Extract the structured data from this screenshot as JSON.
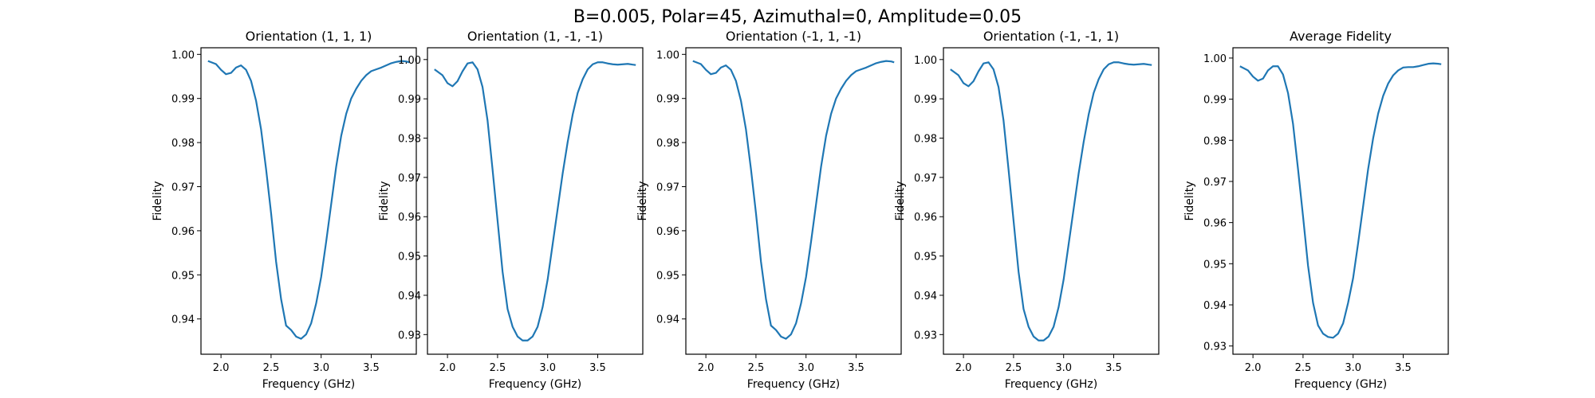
{
  "figure": {
    "suptitle": "B=0.005, Polar=45, Azimuthal=0, Amplitude=0.05",
    "line_color": "#1f77b4"
  },
  "chart_data": [
    {
      "type": "line",
      "title": "Orientation (1, 1, 1)",
      "xlabel": "Frequency (GHz)",
      "ylabel": "Fidelity",
      "xlim": [
        1.8,
        3.95
      ],
      "ylim": [
        0.932,
        1.0015
      ],
      "xticks": [
        2.0,
        2.5,
        3.0,
        3.5
      ],
      "xtick_labels": [
        "2.0",
        "2.5",
        "3.0",
        "3.5"
      ],
      "yticks": [
        0.94,
        0.95,
        0.96,
        0.97,
        0.98,
        0.99,
        1.0
      ],
      "ytick_labels": [
        "0.94",
        "0.95",
        "0.96",
        "0.97",
        "0.98",
        "0.99",
        "1.00"
      ],
      "series": [
        {
          "x": [
            1.87,
            1.95,
            2.0,
            2.05,
            2.1,
            2.15,
            2.2,
            2.25,
            2.3,
            2.35,
            2.4,
            2.45,
            2.5,
            2.55,
            2.6,
            2.65,
            2.7,
            2.75,
            2.8,
            2.85,
            2.9,
            2.95,
            3.0,
            3.05,
            3.1,
            3.15,
            3.2,
            3.25,
            3.3,
            3.35,
            3.4,
            3.45,
            3.5,
            3.55,
            3.6,
            3.65,
            3.7,
            3.75,
            3.8,
            3.85,
            3.88
          ],
          "y": [
            0.9985,
            0.9978,
            0.9965,
            0.9955,
            0.9958,
            0.997,
            0.9975,
            0.9965,
            0.994,
            0.9895,
            0.983,
            0.974,
            0.964,
            0.953,
            0.9445,
            0.9385,
            0.9375,
            0.936,
            0.9355,
            0.9365,
            0.939,
            0.9435,
            0.9495,
            0.9575,
            0.966,
            0.9745,
            0.9815,
            0.9865,
            0.99,
            0.9922,
            0.994,
            0.9953,
            0.9962,
            0.9966,
            0.997,
            0.9975,
            0.998,
            0.9983,
            0.9985,
            0.9984,
            0.9982
          ]
        }
      ]
    },
    {
      "type": "line",
      "title": "Orientation (1, -1, -1)",
      "xlabel": "Frequency (GHz)",
      "ylabel": "Fidelity",
      "xlim": [
        1.8,
        3.95
      ],
      "ylim": [
        0.925,
        1.003
      ],
      "xticks": [
        2.0,
        2.5,
        3.0,
        3.5
      ],
      "xtick_labels": [
        "2.0",
        "2.5",
        "3.0",
        "3.5"
      ],
      "yticks": [
        0.93,
        0.94,
        0.95,
        0.96,
        0.97,
        0.98,
        0.99,
        1.0
      ],
      "ytick_labels": [
        "0.93",
        "0.94",
        "0.95",
        "0.96",
        "0.97",
        "0.98",
        "0.99",
        "1.00"
      ],
      "series": [
        {
          "x": [
            1.87,
            1.95,
            2.0,
            2.05,
            2.1,
            2.15,
            2.2,
            2.25,
            2.3,
            2.35,
            2.4,
            2.45,
            2.5,
            2.55,
            2.6,
            2.65,
            2.7,
            2.75,
            2.8,
            2.85,
            2.9,
            2.95,
            3.0,
            3.05,
            3.1,
            3.15,
            3.2,
            3.25,
            3.3,
            3.35,
            3.4,
            3.45,
            3.5,
            3.55,
            3.6,
            3.65,
            3.7,
            3.75,
            3.8,
            3.85,
            3.88
          ],
          "y": [
            0.9975,
            0.996,
            0.994,
            0.9932,
            0.9945,
            0.997,
            0.999,
            0.9993,
            0.9975,
            0.993,
            0.9845,
            0.972,
            0.959,
            0.946,
            0.9365,
            0.932,
            0.9295,
            0.9285,
            0.9285,
            0.9295,
            0.932,
            0.937,
            0.944,
            0.953,
            0.962,
            0.971,
            0.979,
            0.986,
            0.9915,
            0.995,
            0.9975,
            0.9988,
            0.9993,
            0.9993,
            0.999,
            0.9988,
            0.9987,
            0.9988,
            0.9989,
            0.9987,
            0.9986
          ]
        }
      ]
    },
    {
      "type": "line",
      "title": "Orientation (-1, 1, -1)",
      "xlabel": "Frequency (GHz)",
      "ylabel": "Fidelity",
      "xlim": [
        1.8,
        3.95
      ],
      "ylim": [
        0.932,
        1.0015
      ],
      "xticks": [
        2.0,
        2.5,
        3.0,
        3.5
      ],
      "xtick_labels": [
        "2.0",
        "2.5",
        "3.0",
        "3.5"
      ],
      "yticks": [
        0.94,
        0.95,
        0.96,
        0.97,
        0.98,
        0.99,
        1.0
      ],
      "ytick_labels": [
        "0.94",
        "0.95",
        "0.96",
        "0.97",
        "0.98",
        "0.99",
        "1.00"
      ],
      "series": [
        {
          "x": [
            1.87,
            1.95,
            2.0,
            2.05,
            2.1,
            2.15,
            2.2,
            2.25,
            2.3,
            2.35,
            2.4,
            2.45,
            2.5,
            2.55,
            2.6,
            2.65,
            2.7,
            2.75,
            2.8,
            2.85,
            2.9,
            2.95,
            3.0,
            3.05,
            3.1,
            3.15,
            3.2,
            3.25,
            3.3,
            3.35,
            3.4,
            3.45,
            3.5,
            3.55,
            3.6,
            3.65,
            3.7,
            3.75,
            3.8,
            3.85,
            3.88
          ],
          "y": [
            0.9985,
            0.9978,
            0.9965,
            0.9955,
            0.9958,
            0.997,
            0.9975,
            0.9965,
            0.994,
            0.9895,
            0.983,
            0.974,
            0.964,
            0.953,
            0.9445,
            0.9385,
            0.9375,
            0.936,
            0.9355,
            0.9365,
            0.939,
            0.9435,
            0.9495,
            0.9575,
            0.966,
            0.9745,
            0.9815,
            0.9865,
            0.99,
            0.9922,
            0.994,
            0.9953,
            0.9962,
            0.9966,
            0.997,
            0.9975,
            0.998,
            0.9983,
            0.9985,
            0.9984,
            0.9982
          ]
        }
      ]
    },
    {
      "type": "line",
      "title": "Orientation (-1, -1, 1)",
      "xlabel": "Frequency (GHz)",
      "ylabel": "Fidelity",
      "xlim": [
        1.8,
        3.95
      ],
      "ylim": [
        0.925,
        1.003
      ],
      "xticks": [
        2.0,
        2.5,
        3.0,
        3.5
      ],
      "xtick_labels": [
        "2.0",
        "2.5",
        "3.0",
        "3.5"
      ],
      "yticks": [
        0.93,
        0.94,
        0.95,
        0.96,
        0.97,
        0.98,
        0.99,
        1.0
      ],
      "ytick_labels": [
        "0.93",
        "0.94",
        "0.95",
        "0.96",
        "0.97",
        "0.98",
        "0.99",
        "1.00"
      ],
      "series": [
        {
          "x": [
            1.87,
            1.95,
            2.0,
            2.05,
            2.1,
            2.15,
            2.2,
            2.25,
            2.3,
            2.35,
            2.4,
            2.45,
            2.5,
            2.55,
            2.6,
            2.65,
            2.7,
            2.75,
            2.8,
            2.85,
            2.9,
            2.95,
            3.0,
            3.05,
            3.1,
            3.15,
            3.2,
            3.25,
            3.3,
            3.35,
            3.4,
            3.45,
            3.5,
            3.55,
            3.6,
            3.65,
            3.7,
            3.75,
            3.8,
            3.85,
            3.88
          ],
          "y": [
            0.9975,
            0.996,
            0.994,
            0.9932,
            0.9945,
            0.997,
            0.999,
            0.9993,
            0.9975,
            0.993,
            0.9845,
            0.972,
            0.959,
            0.946,
            0.9365,
            0.932,
            0.9295,
            0.9285,
            0.9285,
            0.9295,
            0.932,
            0.937,
            0.944,
            0.953,
            0.962,
            0.971,
            0.979,
            0.986,
            0.9915,
            0.995,
            0.9975,
            0.9988,
            0.9993,
            0.9993,
            0.999,
            0.9988,
            0.9987,
            0.9988,
            0.9989,
            0.9987,
            0.9986
          ]
        }
      ]
    },
    {
      "type": "line",
      "title": "Average Fidelity",
      "xlabel": "Frequency (GHz)",
      "ylabel": "Fidelity",
      "xlim": [
        1.8,
        3.95
      ],
      "ylim": [
        0.928,
        1.0025
      ],
      "xticks": [
        2.0,
        2.5,
        3.0,
        3.5
      ],
      "xtick_labels": [
        "2.0",
        "2.5",
        "3.0",
        "3.5"
      ],
      "yticks": [
        0.93,
        0.94,
        0.95,
        0.96,
        0.97,
        0.98,
        0.99,
        1.0
      ],
      "ytick_labels": [
        "0.93",
        "0.94",
        "0.95",
        "0.96",
        "0.97",
        "0.98",
        "0.99",
        "1.00"
      ],
      "series": [
        {
          "x": [
            1.87,
            1.95,
            2.0,
            2.05,
            2.1,
            2.15,
            2.2,
            2.25,
            2.3,
            2.35,
            2.4,
            2.45,
            2.5,
            2.55,
            2.6,
            2.65,
            2.7,
            2.75,
            2.8,
            2.85,
            2.9,
            2.95,
            3.0,
            3.05,
            3.1,
            3.15,
            3.2,
            3.25,
            3.3,
            3.35,
            3.4,
            3.45,
            3.5,
            3.55,
            3.6,
            3.65,
            3.7,
            3.75,
            3.8,
            3.85,
            3.88
          ],
          "y": [
            0.998,
            0.997,
            0.9955,
            0.9945,
            0.995,
            0.997,
            0.998,
            0.998,
            0.996,
            0.9915,
            0.984,
            0.973,
            0.9615,
            0.9495,
            0.9405,
            0.935,
            0.933,
            0.9322,
            0.932,
            0.933,
            0.9355,
            0.9405,
            0.9465,
            0.955,
            0.964,
            0.973,
            0.9805,
            0.9865,
            0.9908,
            0.9938,
            0.9958,
            0.997,
            0.9977,
            0.9978,
            0.9978,
            0.998,
            0.9983,
            0.9986,
            0.9987,
            0.9986,
            0.9985
          ]
        }
      ]
    }
  ]
}
